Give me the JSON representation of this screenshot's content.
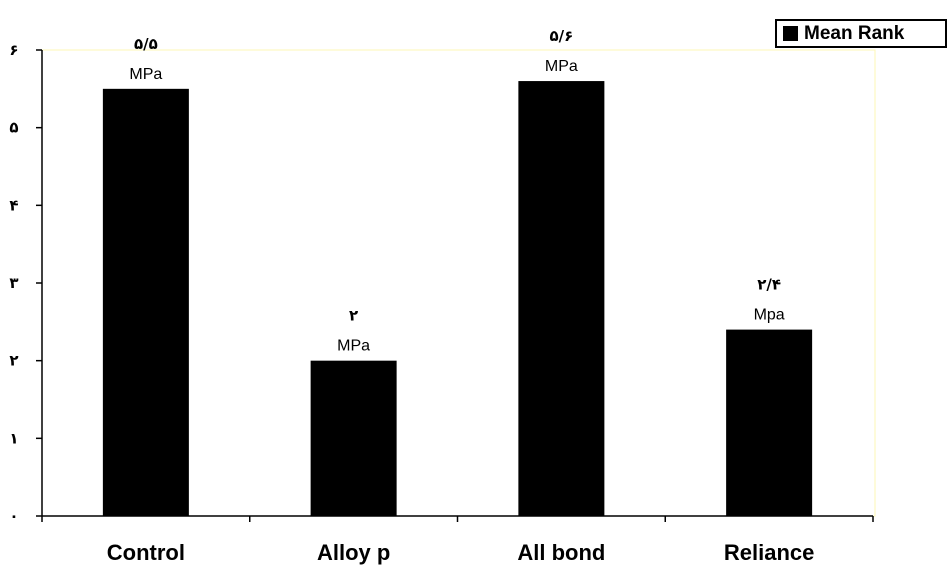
{
  "chart_data": {
    "type": "bar",
    "categories": [
      "Control",
      "Alloy p",
      "All bond",
      "Reliance"
    ],
    "series": [
      {
        "name": "Mean Rank",
        "values": [
          5.5,
          2,
          5.6,
          2.4
        ]
      }
    ],
    "ylim": [
      0,
      6
    ],
    "yticks": [
      0,
      1,
      2,
      3,
      4,
      5,
      6
    ],
    "ytick_labels": [
      "٠",
      "١",
      "٢",
      "٣",
      "۴",
      "۵",
      "۶"
    ],
    "data_labels": [
      {
        "value": "۵/۵",
        "unit": "MPa"
      },
      {
        "value": "٢",
        "unit": "MPa"
      },
      {
        "value": "۵/۶",
        "unit": "MPa"
      },
      {
        "value": "٢/۴",
        "unit": "Mpa"
      }
    ],
    "legend": {
      "label": "Mean Rank",
      "position": "top-right"
    },
    "grid": false,
    "colors": {
      "bar": "#000000",
      "plot_border": "#fdf7b4",
      "axis": "#000000"
    }
  }
}
